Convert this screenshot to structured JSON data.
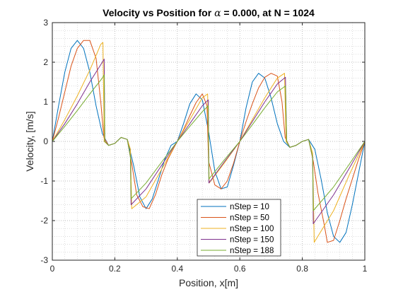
{
  "chart_data": {
    "type": "line",
    "title": {
      "prefix": "Velocity vs Position for ",
      "symbol": "α",
      "suffix": " = 0.000, at N = 1024"
    },
    "xlabel": "Position, x[m]",
    "ylabel": "Velocity, [m/s]",
    "xlim": [
      0,
      1
    ],
    "ylim": [
      -3,
      3
    ],
    "xticks": [
      0,
      0.2,
      0.4,
      0.6,
      0.8,
      1
    ],
    "yticks": [
      -3,
      -2,
      -1,
      0,
      1,
      2,
      3
    ],
    "xtick_labels": [
      "0",
      "0.2",
      "0.4",
      "0.6",
      "0.8",
      "1"
    ],
    "ytick_labels": [
      "-3",
      "-2",
      "-1",
      "0",
      "1",
      "2",
      "3"
    ],
    "grid": "major and minor, dotted",
    "legend_position": "bottom-center",
    "series": [
      {
        "name": "nStep = 10",
        "color": "#0072BD",
        "x": [
          0,
          0.02,
          0.04,
          0.06,
          0.08,
          0.1,
          0.12,
          0.14,
          0.16,
          0.18,
          0.2,
          0.22,
          0.24,
          0.26,
          0.28,
          0.3,
          0.32,
          0.34,
          0.36,
          0.38,
          0.4,
          0.42,
          0.44,
          0.46,
          0.48,
          0.5,
          0.52,
          0.54,
          0.56,
          0.58,
          0.6,
          0.62,
          0.64,
          0.66,
          0.68,
          0.7,
          0.72,
          0.74,
          0.76,
          0.78,
          0.8,
          0.82,
          0.84,
          0.86,
          0.88,
          0.9,
          0.92,
          0.94,
          0.96,
          0.98,
          1
        ],
        "y": [
          0,
          0.9,
          1.75,
          2.35,
          2.55,
          2.35,
          1.75,
          0.9,
          0.2,
          -0.1,
          -0.05,
          0.1,
          0.05,
          -0.6,
          -1.4,
          -1.7,
          -1.45,
          -0.95,
          -0.45,
          -0.1,
          0,
          0.45,
          0.95,
          1.2,
          1.05,
          0.25,
          -0.75,
          -1.2,
          -1.15,
          -0.6,
          0,
          0.85,
          1.5,
          1.72,
          1.6,
          1.1,
          0.45,
          0,
          -0.15,
          -0.1,
          0,
          0.05,
          -0.2,
          -0.95,
          -1.8,
          -2.4,
          -2.55,
          -2.3,
          -1.6,
          -0.8,
          0
        ]
      },
      {
        "name": "nStep = 50",
        "color": "#D95319",
        "x": [
          0,
          0.02,
          0.04,
          0.06,
          0.08,
          0.1,
          0.12,
          0.14,
          0.155,
          0.165,
          0.18,
          0.2,
          0.22,
          0.24,
          0.255,
          0.27,
          0.29,
          0.31,
          0.33,
          0.35,
          0.37,
          0.4,
          0.42,
          0.44,
          0.46,
          0.48,
          0.495,
          0.5,
          0.52,
          0.54,
          0.56,
          0.58,
          0.6,
          0.62,
          0.64,
          0.66,
          0.68,
          0.7,
          0.72,
          0.735,
          0.745,
          0.76,
          0.78,
          0.8,
          0.82,
          0.835,
          0.85,
          0.87,
          0.88,
          0.9,
          0.92,
          0.94,
          0.96,
          0.98,
          1
        ],
        "y": [
          0,
          0.6,
          1.25,
          1.9,
          2.35,
          2.55,
          2.55,
          2.1,
          1.0,
          0.1,
          -0.1,
          -0.05,
          0.1,
          0.05,
          -0.6,
          -1.35,
          -1.65,
          -1.7,
          -1.35,
          -0.85,
          -0.45,
          0,
          0.3,
          0.65,
          0.98,
          1.2,
          0.9,
          -0.5,
          -1.1,
          -1.2,
          -1.0,
          -0.55,
          0,
          0.5,
          0.95,
          1.35,
          1.62,
          1.72,
          1.65,
          1.0,
          0.1,
          -0.15,
          -0.1,
          0,
          0.05,
          -0.5,
          -1.3,
          -2.1,
          -2.55,
          -2.5,
          -2.0,
          -1.45,
          -0.95,
          -0.45,
          0
        ]
      },
      {
        "name": "nStep = 100",
        "color": "#EDB120",
        "x": [
          0,
          0.04,
          0.08,
          0.12,
          0.155,
          0.162,
          0.166,
          0.18,
          0.2,
          0.22,
          0.24,
          0.25,
          0.254,
          0.3,
          0.35,
          0.4,
          0.44,
          0.48,
          0.497,
          0.502,
          0.55,
          0.6,
          0.64,
          0.68,
          0.72,
          0.743,
          0.748,
          0.76,
          0.78,
          0.8,
          0.82,
          0.833,
          0.838,
          0.9,
          0.95,
          1
        ],
        "y": [
          0,
          0.55,
          1.15,
          1.8,
          2.45,
          2.5,
          0,
          -0.1,
          -0.05,
          0.1,
          0.05,
          -0.2,
          -1.7,
          -1.4,
          -0.7,
          0,
          0.55,
          1.1,
          1.2,
          -1.05,
          -0.55,
          0,
          0.55,
          1.1,
          1.6,
          1.72,
          0,
          -0.15,
          -0.1,
          0,
          0.05,
          -0.3,
          -2.55,
          -1.75,
          -0.85,
          0
        ]
      },
      {
        "name": "nStep = 150",
        "color": "#7E2F8E",
        "x": [
          0,
          0.04,
          0.08,
          0.12,
          0.16,
          0.166,
          0.168,
          0.18,
          0.2,
          0.22,
          0.24,
          0.25,
          0.252,
          0.3,
          0.35,
          0.4,
          0.44,
          0.48,
          0.499,
          0.501,
          0.55,
          0.6,
          0.64,
          0.68,
          0.72,
          0.746,
          0.75,
          0.76,
          0.78,
          0.8,
          0.82,
          0.833,
          0.835,
          0.9,
          0.95,
          1
        ],
        "y": [
          0,
          0.45,
          0.95,
          1.5,
          2.0,
          2.08,
          0,
          -0.1,
          -0.05,
          0.1,
          0.05,
          -0.4,
          -1.6,
          -1.2,
          -0.6,
          0,
          0.45,
          0.9,
          1.05,
          -1.05,
          -0.52,
          0,
          0.5,
          1.0,
          1.45,
          1.62,
          0,
          -0.15,
          -0.1,
          0,
          0.05,
          -0.4,
          -2.08,
          -1.35,
          -0.68,
          0
        ]
      },
      {
        "name": "nStep = 188",
        "color": "#77AC30",
        "x": [
          0,
          0.04,
          0.08,
          0.12,
          0.16,
          0.166,
          0.168,
          0.18,
          0.2,
          0.22,
          0.24,
          0.25,
          0.252,
          0.3,
          0.35,
          0.4,
          0.44,
          0.48,
          0.499,
          0.501,
          0.55,
          0.6,
          0.64,
          0.68,
          0.72,
          0.746,
          0.75,
          0.76,
          0.78,
          0.8,
          0.82,
          0.833,
          0.835,
          0.9,
          0.95,
          1
        ],
        "y": [
          0,
          0.38,
          0.78,
          1.2,
          1.6,
          1.68,
          0,
          -0.1,
          -0.05,
          0.1,
          0.05,
          -0.4,
          -1.45,
          -1.05,
          -0.52,
          0,
          0.38,
          0.75,
          0.9,
          -0.95,
          -0.47,
          0,
          0.42,
          0.85,
          1.25,
          1.4,
          0,
          -0.15,
          -0.1,
          0,
          0.05,
          -0.4,
          -1.75,
          -1.15,
          -0.58,
          0
        ]
      }
    ]
  }
}
